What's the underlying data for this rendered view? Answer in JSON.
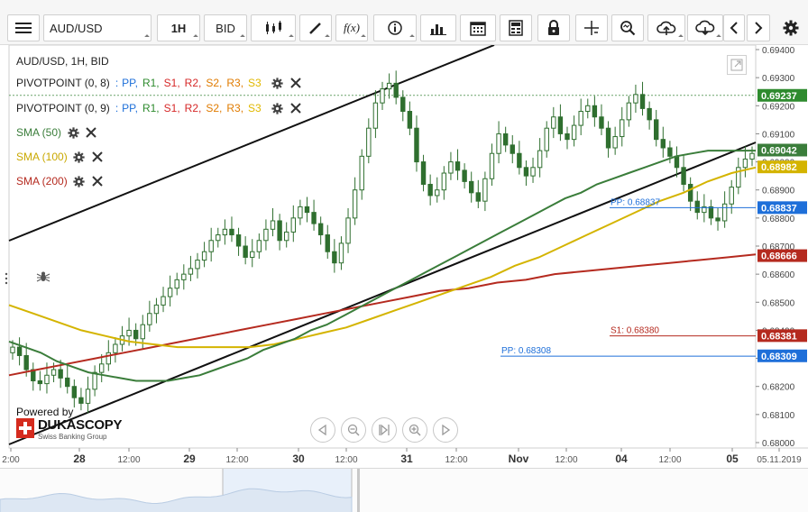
{
  "toolbar": {
    "symbol": "AUD/USD",
    "timeframe": "1H",
    "price_type": "BID",
    "buttons": [
      "menu-icon",
      "candle-type-icon",
      "draw-icon",
      "function-icon",
      "info-icon",
      "bar-chart-icon",
      "calendar-icon",
      "calculator-icon",
      "lock-icon",
      "crosshair-icon",
      "zoom-icon",
      "upload-icon",
      "download-icon",
      "chevron-left-icon",
      "chevron-right-icon",
      "gear-icon"
    ]
  },
  "legend": {
    "title": "AUD/USD, 1H, BID",
    "pivots": [
      {
        "label": "PIVOTPOINT (0, 8)",
        "separator": ":",
        "items": [
          "PP,",
          "R1,",
          "S1,",
          "R2,",
          "S2,",
          "R3,",
          "S3"
        ]
      },
      {
        "label": "PIVOTPOINT (0, 9)",
        "separator": ":",
        "items": [
          "PP,",
          "R1,",
          "S1,",
          "R2,",
          "S2,",
          "R3,",
          "S3"
        ]
      }
    ],
    "pivot_colors": [
      "#1e6fd9",
      "#2e8b2e",
      "#d62828",
      "#d62828",
      "#e07b00",
      "#e07b00",
      "#e0b800"
    ],
    "smas": [
      {
        "label": "SMA (50)",
        "color": "#3a7d3a"
      },
      {
        "label": "SMA (100)",
        "color": "#d4b400"
      },
      {
        "label": "SMA (200)",
        "color": "#b52a1f"
      }
    ]
  },
  "branding": {
    "powered": "Powered by",
    "logo": "DUKASCOPY",
    "sub": "Swiss Banking Group"
  },
  "chart_data": {
    "type": "line",
    "price_axis": [
      "0.69400",
      "0.69300",
      "0.69200",
      "0.69100",
      "0.69000",
      "0.68900",
      "0.68800",
      "0.68700",
      "0.68600",
      "0.68500",
      "0.68400",
      "0.68300",
      "0.68200",
      "0.68100",
      "0.68000"
    ],
    "time_axis": [
      "2:00",
      "28",
      "12:00",
      "29",
      "12:00",
      "30",
      "12:00",
      "31",
      "12:00",
      "Nov",
      "12:00",
      "04",
      "12:00",
      "05",
      "05.11.2019"
    ],
    "price_tags": [
      {
        "value": "0.69237",
        "color": "#2e8b2e"
      },
      {
        "value": "0.69042",
        "color": "#3a7d3a"
      },
      {
        "value": "0.68982",
        "color": "#d4b400"
      },
      {
        "value": "0.68837",
        "color": "#1e6fd9"
      },
      {
        "value": "0.68666",
        "color": "#b52a1f"
      },
      {
        "value": "0.68381",
        "color": "#b52a1f"
      },
      {
        "value": "0.68309",
        "color": "#1e6fd9"
      }
    ],
    "level_labels": [
      {
        "text": "PP: 0.68837",
        "value": 0.68837,
        "color": "#1e6fd9"
      },
      {
        "text": "S1: 0.68380",
        "value": 0.6838,
        "color": "#b52a1f"
      },
      {
        "text": "PP: 0.68308",
        "value": 0.68308,
        "color": "#1e6fd9"
      }
    ],
    "close": [
      0.6834,
      0.6831,
      0.6826,
      0.6822,
      0.6821,
      0.6824,
      0.6826,
      0.6823,
      0.682,
      0.6816,
      0.6814,
      0.6819,
      0.6825,
      0.6828,
      0.6832,
      0.6835,
      0.6838,
      0.684,
      0.6837,
      0.6842,
      0.6846,
      0.6849,
      0.6852,
      0.6855,
      0.6858,
      0.686,
      0.6862,
      0.6865,
      0.6868,
      0.6872,
      0.6874,
      0.6876,
      0.6874,
      0.687,
      0.6866,
      0.6868,
      0.6872,
      0.6876,
      0.6879,
      0.6872,
      0.6875,
      0.688,
      0.6884,
      0.6882,
      0.6878,
      0.6874,
      0.6868,
      0.6864,
      0.6871,
      0.688,
      0.689,
      0.6902,
      0.6912,
      0.6921,
      0.6926,
      0.6928,
      0.6923,
      0.6918,
      0.6912,
      0.69,
      0.6892,
      0.6888,
      0.689,
      0.6896,
      0.69,
      0.6897,
      0.6893,
      0.6889,
      0.6886,
      0.6894,
      0.6903,
      0.691,
      0.6906,
      0.6903,
      0.6898,
      0.6895,
      0.6898,
      0.6904,
      0.6912,
      0.6916,
      0.691,
      0.6908,
      0.6913,
      0.6918,
      0.692,
      0.6916,
      0.6912,
      0.6905,
      0.6909,
      0.6915,
      0.6921,
      0.6924,
      0.6919,
      0.6915,
      0.6908,
      0.6905,
      0.6902,
      0.6898,
      0.6892,
      0.6886,
      0.6882,
      0.6884,
      0.688,
      0.6879,
      0.6885,
      0.6891,
      0.6898,
      0.6901,
      0.6903
    ],
    "sma50": [
      0.6836,
      0.6834,
      0.6832,
      0.6829,
      0.6827,
      0.6825,
      0.6824,
      0.6823,
      0.6822,
      0.6822,
      0.6822,
      0.6823,
      0.6824,
      0.6826,
      0.6828,
      0.683,
      0.6833,
      0.6835,
      0.6837,
      0.684,
      0.6842,
      0.6845,
      0.6848,
      0.6851,
      0.6854,
      0.6857,
      0.686,
      0.6863,
      0.6866,
      0.6869,
      0.6872,
      0.6875,
      0.6878,
      0.6881,
      0.6884,
      0.6887,
      0.6889,
      0.6892,
      0.6894,
      0.6896,
      0.6898,
      0.69,
      0.6902,
      0.6903,
      0.6904,
      0.6904,
      0.6904,
      0.6904
    ],
    "sma100": [
      0.6849,
      0.6846,
      0.6843,
      0.684,
      0.6838,
      0.6836,
      0.6835,
      0.6834,
      0.6834,
      0.6834,
      0.6834,
      0.6835,
      0.6837,
      0.6839,
      0.6841,
      0.6844,
      0.6847,
      0.685,
      0.6853,
      0.6856,
      0.6859,
      0.6863,
      0.6866,
      0.687,
      0.6874,
      0.6878,
      0.6882,
      0.6886,
      0.6889,
      0.6893,
      0.6896,
      0.6898
    ],
    "sma200": [
      0.6824,
      0.6826,
      0.6828,
      0.683,
      0.6832,
      0.6834,
      0.6836,
      0.6838,
      0.684,
      0.6842,
      0.6844,
      0.6846,
      0.6848,
      0.685,
      0.6852,
      0.6854,
      0.6855,
      0.6857,
      0.6858,
      0.686,
      0.6861,
      0.6862,
      0.6863,
      0.6864,
      0.6865,
      0.6866,
      0.6867
    ]
  }
}
